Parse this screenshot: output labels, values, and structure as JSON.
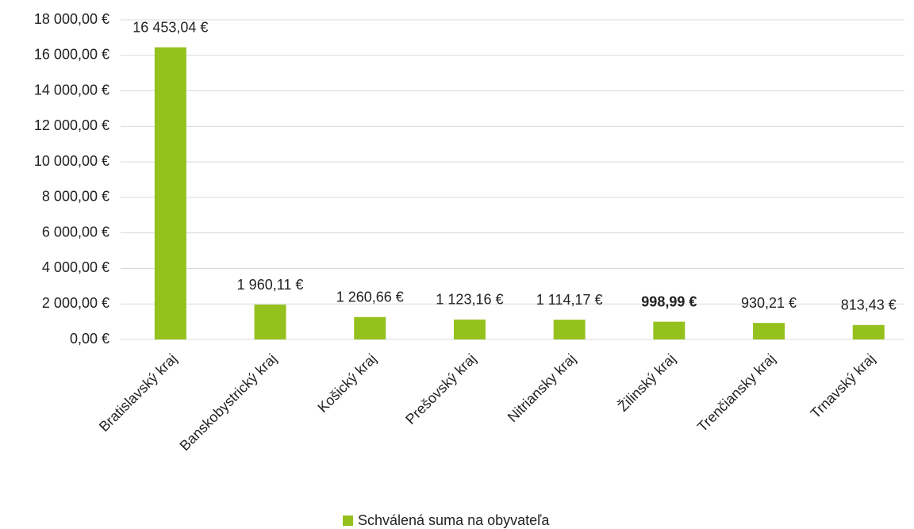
{
  "chart_data": {
    "type": "bar",
    "categories": [
      "Bratislavský kraj",
      "Banskobystrický kraj",
      "Košický kraj",
      "Prešovský kraj",
      "Nitriansky kraj",
      "Žilinský kraj",
      "Trenčiansky kraj",
      "Trnavský kraj"
    ],
    "series": [
      {
        "name": "Schválená suma na obyvateľa",
        "color": "#95c11f",
        "values": [
          16453.04,
          1960.11,
          1260.66,
          1123.16,
          1114.17,
          998.99,
          930.21,
          813.43
        ],
        "value_labels": [
          "16 453,04 €",
          "1 960,11 €",
          "1 260,66 €",
          "1 123,16 €",
          "1 114,17 €",
          "998,99 €",
          "930,21 €",
          "813,43 €"
        ]
      }
    ],
    "emphasized_category": "Žilinský kraj",
    "ylim": [
      0,
      18000
    ],
    "yticks": [
      {
        "value": 0,
        "label": "0,00 €"
      },
      {
        "value": 2000,
        "label": "2 000,00 €"
      },
      {
        "value": 4000,
        "label": "4 000,00 €"
      },
      {
        "value": 6000,
        "label": "6 000,00 €"
      },
      {
        "value": 8000,
        "label": "8 000,00 €"
      },
      {
        "value": 10000,
        "label": "10 000,00 €"
      },
      {
        "value": 12000,
        "label": "12 000,00 €"
      },
      {
        "value": 14000,
        "label": "14 000,00 €"
      },
      {
        "value": 16000,
        "label": "16 000,00 €"
      },
      {
        "value": 18000,
        "label": "18 000,00 €"
      }
    ],
    "grid": true,
    "legend": "bottom"
  }
}
